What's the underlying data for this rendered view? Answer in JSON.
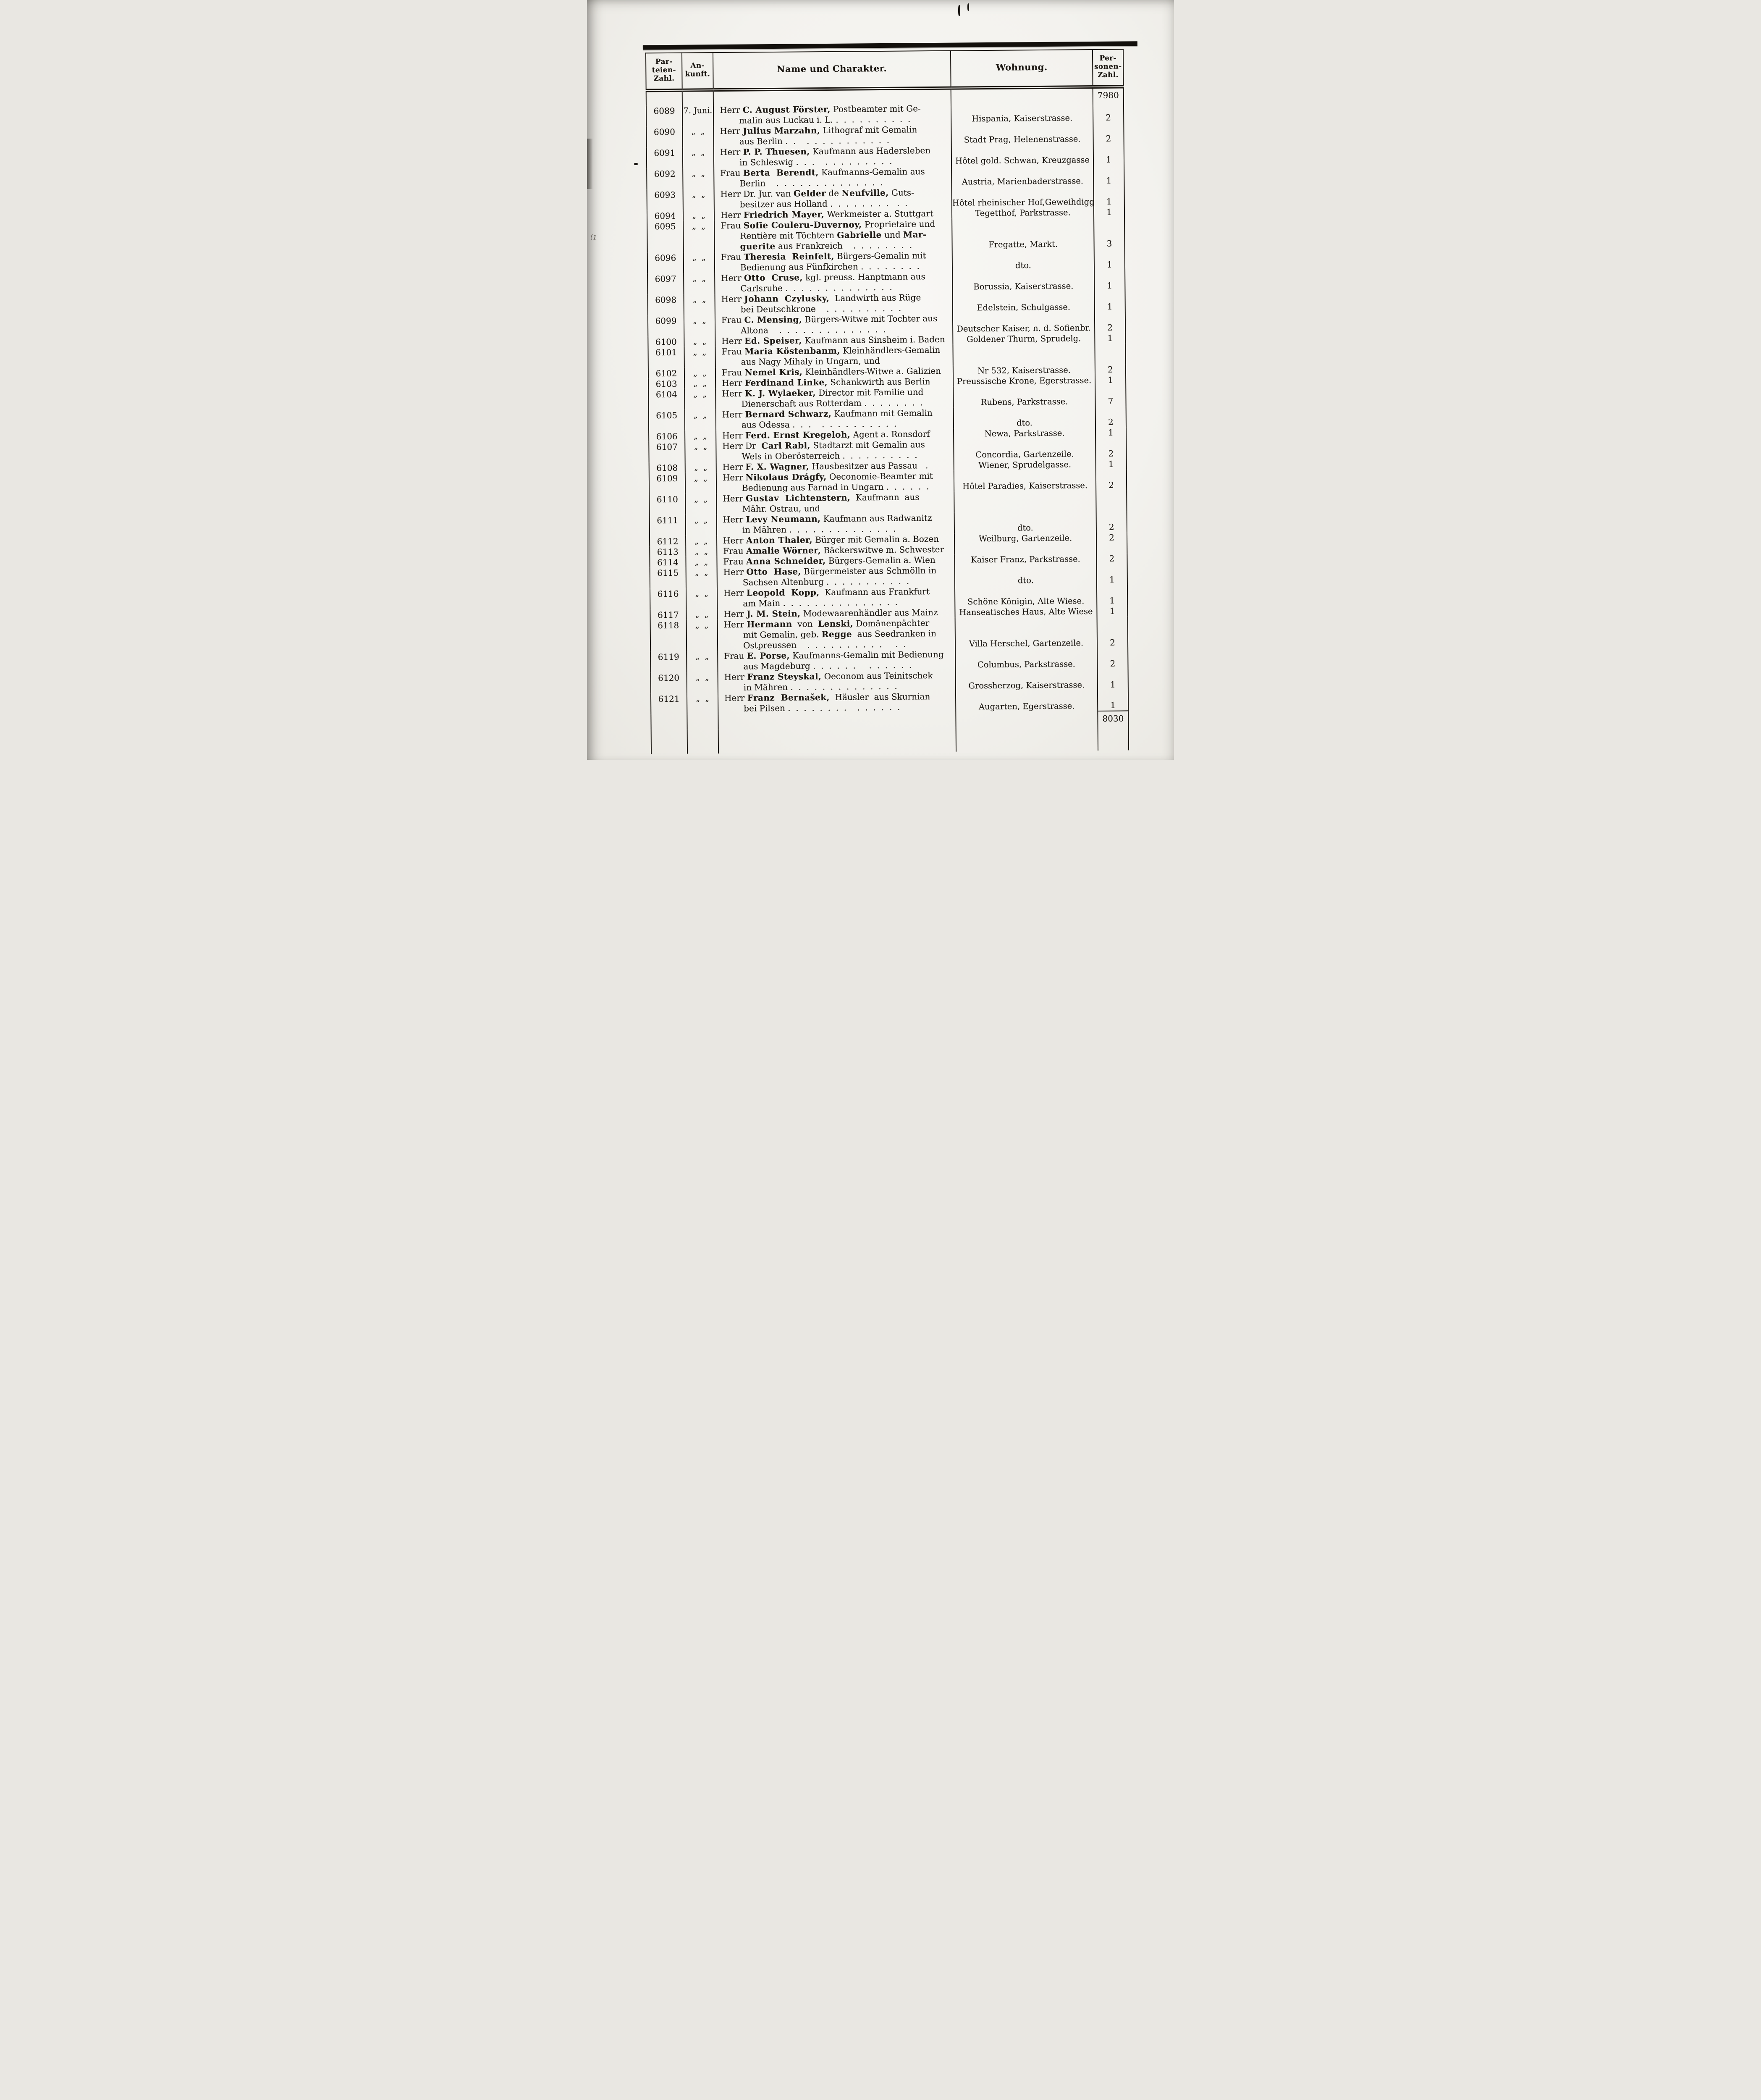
{
  "document": {
    "kind": "spa-guest-register-page",
    "language": "German",
    "ink_color": "#17130e",
    "paper_color": "#f3f2ee"
  },
  "header": {
    "parteien": [
      "Par-",
      "teien-",
      "Zahl."
    ],
    "ankunft": [
      "An-",
      "kunft."
    ],
    "name": "Name und Charakter.",
    "wohnung": "Wohnung.",
    "personen": [
      "Per-",
      "sonen-",
      "Zahl."
    ]
  },
  "totals": {
    "carried_forward": "7980",
    "page_total": "8030"
  },
  "register": {
    "rows": [
      {
        "nr": "6089",
        "ankunft": "7. Juni.",
        "name_lines": [
          [
            "Herr ",
            [
              "C. August Förster,"
            ],
            " Postbeamter mit Ge-"
          ],
          [
            "malin aus Luckau i. L. .  .  .  .  .  .  .  .  .  ."
          ]
        ],
        "wohnung": "Hispania, Kaiserstrasse.",
        "personen": "2"
      },
      {
        "nr": "6090",
        "ankunft": "„  „",
        "name_lines": [
          [
            "Herr ",
            [
              "Julius Marzahn,"
            ],
            " Lithograf mit Gemalin"
          ],
          [
            "aus Berlin .  .    .  .  .  .  .  .  .  .  .  .  ."
          ]
        ],
        "wohnung": "Stadt Prag, Helenenstrasse.",
        "personen": "2"
      },
      {
        "nr": "6091",
        "ankunft": "„  „",
        "name_lines": [
          [
            "Herr ",
            [
              "P. P. Thuesen,"
            ],
            " Kaufmann aus Hadersleben"
          ],
          [
            "in Schleswig .  .  .    .  .  .  .  .  .  .  .  ."
          ]
        ],
        "wohnung": "Hôtel gold. Schwan, Kreuzgasse",
        "personen": "1"
      },
      {
        "nr": "6092",
        "ankunft": "„  „",
        "name_lines": [
          [
            "Frau ",
            [
              "Berta  Berendt,"
            ],
            " Kaufmanns-Gemalin aus"
          ],
          [
            "Berlin    .  .  .  .  .  .  .  .  .  .  .  .  .  ."
          ]
        ],
        "wohnung": "Austria, Marienbaderstrasse.",
        "personen": "1"
      },
      {
        "nr": "6093",
        "ankunft": "„  „",
        "name_lines": [
          [
            "Herr Dr. Jur. van ",
            [
              "Gelder"
            ],
            " de ",
            [
              "Neufville,"
            ],
            " Guts-"
          ],
          [
            "besitzer aus Holland .  .  .  .  .  .  .  .   .  ."
          ]
        ],
        "wohnung": "Hôtel rheinischer Hof,Geweihdigg.",
        "personen": "1"
      },
      {
        "nr": "6094",
        "ankunft": "„  „",
        "name_lines": [
          [
            "Herr ",
            [
              "Friedrich Mayer,"
            ],
            " Werkmeister a. Stuttgart"
          ]
        ],
        "wohnung": "Tegetthof, Parkstrasse.",
        "personen": "1"
      },
      {
        "nr": "6095",
        "ankunft": "„  „",
        "name_lines": [
          [
            "Frau ",
            [
              "Sofie Couleru-Duvernoy,"
            ],
            " Proprietaire und"
          ],
          [
            "Rentière mit Töchtern ",
            [
              "Gabrielle"
            ],
            " und ",
            [
              "Mar-"
            ]
          ],
          [
            [
              "guerite"
            ],
            " aus Frankreich    .  .  .  .  .  .  .  ."
          ]
        ],
        "wohnung": "Fregatte, Markt.",
        "personen": "3"
      },
      {
        "nr": "6096",
        "ankunft": "„  „",
        "name_lines": [
          [
            "Frau ",
            [
              "Theresia  Reinfelt,"
            ],
            " Bürgers-Gemalin mit"
          ],
          [
            "Bedienung aus Fünfkirchen .  .  .  .  .  .  .  ."
          ]
        ],
        "wohnung": "dto.",
        "personen": "1"
      },
      {
        "nr": "6097",
        "ankunft": "„  „",
        "name_lines": [
          [
            "Herr ",
            [
              "Otto  Cruse,"
            ],
            " kgl. preuss. Hanptmann aus"
          ],
          [
            "Carlsruhe .  .  .  .  .  .  .  .  .  .  .  .  .  ."
          ]
        ],
        "wohnung": "Borussia, Kaiserstrasse.",
        "personen": "1"
      },
      {
        "nr": "6098",
        "ankunft": "„  „",
        "name_lines": [
          [
            "Herr ",
            [
              "Johann  Czylusky,"
            ],
            "  Landwirth aus Rüge"
          ],
          [
            "bei Deutschkrone    .  .  .  .  .  .  .  .  .  ."
          ]
        ],
        "wohnung": "Edelstein, Schulgasse.",
        "personen": "1"
      },
      {
        "nr": "6099",
        "ankunft": "„  „",
        "name_lines": [
          [
            "Frau ",
            [
              "C. Mensing,"
            ],
            " Bürgers-Witwe mit Tochter aus"
          ],
          [
            "Altona    .  .  .  .  .  .  .  .  .  .  .  .  .  ."
          ]
        ],
        "wohnung": "Deutscher Kaiser, n. d. Sofienbr.",
        "personen": "2"
      },
      {
        "nr": "6100",
        "ankunft": "„  „",
        "name_lines": [
          [
            "Herr ",
            [
              "Ed. Speiser,"
            ],
            " Kaufmann aus Sinsheim i. Baden"
          ]
        ],
        "wohnung": "Goldener Thurm, Sprudelg.",
        "personen": "1"
      },
      {
        "nr": "6101",
        "ankunft": "„  „",
        "name_lines": [
          [
            "Frau ",
            [
              "Maria Köstenbanm,"
            ],
            " Kleinhändlers-Gemalin"
          ],
          [
            "aus Nagy Mihaly in Ungarn, und"
          ]
        ],
        "wohnung": "",
        "personen": ""
      },
      {
        "nr": "6102",
        "ankunft": "„  „",
        "name_lines": [
          [
            "Frau ",
            [
              "Nemel Kris,"
            ],
            " Kleinhändlers-Witwe a. Galizien"
          ]
        ],
        "wohnung": "Nr 532, Kaiserstrasse.",
        "personen": "2"
      },
      {
        "nr": "6103",
        "ankunft": "„  „",
        "name_lines": [
          [
            "Herr ",
            [
              "Ferdinand Linke,"
            ],
            " Schankwirth aus Berlin"
          ]
        ],
        "wohnung": "Preussische Krone, Egerstrasse.",
        "personen": "1"
      },
      {
        "nr": "6104",
        "ankunft": "„  „",
        "name_lines": [
          [
            "Herr ",
            [
              "K. J. Wylaeker,"
            ],
            " Director mit Familie und"
          ],
          [
            "Dienerschaft aus Rotterdam .  .  .  .  .  .  .  ."
          ]
        ],
        "wohnung": "Rubens, Parkstrasse.",
        "personen": "7"
      },
      {
        "nr": "6105",
        "ankunft": "„  „",
        "name_lines": [
          [
            "Herr ",
            [
              "Bernard Schwarz,"
            ],
            " Kaufmann mit Gemalin"
          ],
          [
            "aus Odessa .  .  .    .  .  .  .  .  .  .  .  .  ."
          ]
        ],
        "wohnung": "dto.",
        "personen": "2"
      },
      {
        "nr": "6106",
        "ankunft": "„  „",
        "name_lines": [
          [
            "Herr ",
            [
              "Ferd. Ernst Kregeloh,"
            ],
            " Agent a. Ronsdorf"
          ]
        ],
        "wohnung": "Newa, Parkstrasse.",
        "personen": "1"
      },
      {
        "nr": "6107",
        "ankunft": "„  „",
        "name_lines": [
          [
            "Herr Dr  ",
            [
              "Carl Rabl,"
            ],
            " Stadtarzt mit Gemalin aus"
          ],
          [
            "Wels in Oberösterreich .  .  .  .  .  .  .  .  .  ."
          ]
        ],
        "wohnung": "Concordia, Gartenzeile.",
        "personen": "2"
      },
      {
        "nr": "6108",
        "ankunft": "„  „",
        "name_lines": [
          [
            "Herr ",
            [
              "F. X. Wagner,"
            ],
            " Hausbesitzer aus Passau   ."
          ]
        ],
        "wohnung": "Wiener, Sprudelgasse.",
        "personen": "1"
      },
      {
        "nr": "6109",
        "ankunft": "„  „",
        "name_lines": [
          [
            "Herr ",
            [
              "Nikolaus Drágfy,"
            ],
            " Oeconomie-Beamter mit"
          ],
          [
            "Bedienung aus Farnad in Ungarn .  .  .  .  .  ."
          ]
        ],
        "wohnung": "Hôtel Paradies, Kaiserstrasse.",
        "personen": "2"
      },
      {
        "nr": "6110",
        "ankunft": "„  „",
        "name_lines": [
          [
            "Herr ",
            [
              "Gustav  Lichtenstern,"
            ],
            "  Kaufmann  aus"
          ],
          [
            "Mähr. Ostrau, und"
          ]
        ],
        "wohnung": "",
        "personen": ""
      },
      {
        "nr": "6111",
        "ankunft": "„  „",
        "name_lines": [
          [
            "Herr ",
            [
              "Levy Neumann,"
            ],
            " Kaufmann aus Radwanitz"
          ],
          [
            "in Mähren .  .  .  .  .  .  .  .  .  .  .  .  .  ."
          ]
        ],
        "wohnung": "dto.",
        "personen": "2"
      },
      {
        "nr": "6112",
        "ankunft": "„  „",
        "name_lines": [
          [
            "Herr ",
            [
              "Anton Thaler,"
            ],
            " Bürger mit Gemalin a. Bozen"
          ]
        ],
        "wohnung": "Weilburg, Gartenzeile.",
        "personen": "2"
      },
      {
        "nr": "6113",
        "ankunft": "„  „",
        "name_lines": [
          [
            "Frau ",
            [
              "Amalie Wörner,"
            ],
            " Bäckerswitwe m. Schwester"
          ]
        ],
        "wohnung": "",
        "personen": ""
      },
      {
        "nr": "6114",
        "ankunft": "„  „",
        "name_lines": [
          [
            "Frau ",
            [
              "Anna Schneider,"
            ],
            " Bürgers-Gemalin a. Wien"
          ]
        ],
        "wohnung": "Kaiser Franz, Parkstrasse.",
        "personen": "2"
      },
      {
        "nr": "6115",
        "ankunft": "„  „",
        "name_lines": [
          [
            "Herr ",
            [
              "Otto  Hase,"
            ],
            " Bürgermeister aus Schmölln in"
          ],
          [
            "Sachsen Altenburg .  .  .  .  .  .  .  .  .  .  ."
          ]
        ],
        "wohnung": "dto.",
        "personen": "1"
      },
      {
        "nr": "6116",
        "ankunft": "„  „",
        "name_lines": [
          [
            "Herr ",
            [
              "Leopold  Kopp,"
            ],
            "  Kaufmann aus Frankfurt"
          ],
          [
            "am Main .  .  .  .  .  .  .  .  .  .  .  .  .  .  ."
          ]
        ],
        "wohnung": "Schöne Königin, Alte Wiese.",
        "personen": "1"
      },
      {
        "nr": "6117",
        "ankunft": "„  „",
        "name_lines": [
          [
            "Herr ",
            [
              "J. M. Stein,"
            ],
            " Modewaarenhändler aus Mainz"
          ]
        ],
        "wohnung": "Hanseatisches Haus, Alte Wiese",
        "personen": "1"
      },
      {
        "nr": "6118",
        "ankunft": "„  „",
        "name_lines": [
          [
            "Herr ",
            [
              "Hermann"
            ],
            "  von  ",
            [
              "Lenski,"
            ],
            " Domänenpächter"
          ],
          [
            "mit Gemalin, geb. ",
            [
              "Regge"
            ],
            "  aus Seedranken in"
          ],
          [
            "Ostpreussen    .  .  .  .  .  .  .  .  .  .     .  ."
          ]
        ],
        "wohnung": "Villa Herschel, Gartenzeile.",
        "personen": "2"
      },
      {
        "nr": "6119",
        "ankunft": "„  „",
        "name_lines": [
          [
            "Frau ",
            [
              "E. Porse,"
            ],
            " Kaufmanns-Gemalin mit Bedienung"
          ],
          [
            "aus Magdeburg .  .  .  .  .  .     .  .  .  .  .  ."
          ]
        ],
        "wohnung": "Columbus, Parkstrasse.",
        "personen": "2"
      },
      {
        "nr": "6120",
        "ankunft": "„  „",
        "name_lines": [
          [
            "Herr ",
            [
              "Franz Steyskal,"
            ],
            " Oeconom aus Teinitschek"
          ],
          [
            "in Mähren .  .  .  .  .  .  .  .  .  .  .  .  .  ."
          ]
        ],
        "wohnung": "Grossherzog, Kaiserstrasse.",
        "personen": "1"
      },
      {
        "nr": "6121",
        "ankunft": "„  „",
        "name_lines": [
          [
            "Herr ",
            [
              "Franz  Bernašek,"
            ],
            "  Häusler  aus Skurnian"
          ],
          [
            "bei Pilsen .  .  .  .  .  .  .  .    .  .  .  .  .  ."
          ]
        ],
        "wohnung": "Augarten, Egerstrasse.",
        "personen": "1"
      }
    ]
  }
}
